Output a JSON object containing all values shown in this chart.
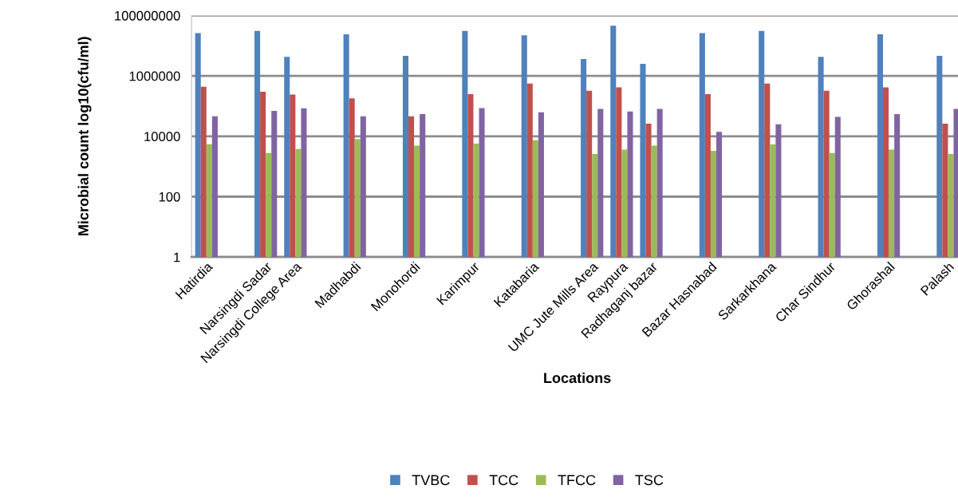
{
  "chart_data": {
    "type": "bar",
    "xlabel": "Locations",
    "ylabel": "Microbial count log10(cfu/ml)",
    "categories": [
      "Hatirdia",
      null,
      "Narsingdi Sadar",
      "Narsingdi College Area",
      null,
      "Madhabdi",
      null,
      "Monohordi",
      null,
      "Karimpur",
      null,
      "Katabaria",
      null,
      "UMC Jute Mills Area",
      "Raypura",
      "Radhaganj bazar",
      null,
      "Bazar Hasnabad",
      null,
      "Sarkarkhana",
      null,
      "Char Sindhur",
      null,
      "Ghorashal",
      null,
      "Palash"
    ],
    "series": [
      {
        "name": "TVBC",
        "color": "#4f81bd",
        "values": [
          26000000,
          null,
          31000000,
          4300000,
          null,
          24000000,
          null,
          4600000,
          null,
          31000000,
          null,
          22000000,
          null,
          3600000,
          46000000,
          2500000,
          null,
          26000000,
          null,
          31000000,
          null,
          4300000,
          null,
          24000000,
          null,
          4600000
        ]
      },
      {
        "name": "TCC",
        "color": "#c0504d",
        "values": [
          440000,
          null,
          300000,
          240000,
          null,
          180000,
          null,
          46000,
          null,
          250000,
          null,
          560000,
          null,
          320000,
          420000,
          26000,
          null,
          250000,
          null,
          560000,
          null,
          320000,
          null,
          420000,
          null,
          26000
        ]
      },
      {
        "name": "TFCC",
        "color": "#9bbb59",
        "values": [
          5500,
          null,
          2800,
          3800,
          null,
          8100,
          null,
          4900,
          null,
          5700,
          null,
          7400,
          null,
          2600,
          3600,
          4900,
          null,
          3300,
          null,
          5400,
          null,
          2800,
          null,
          3600,
          null,
          2600
        ]
      },
      {
        "name": "TSC",
        "color": "#8064a2",
        "values": [
          46000,
          null,
          69000,
          85000,
          null,
          46000,
          null,
          54000,
          null,
          86000,
          null,
          62000,
          null,
          81000,
          66000,
          81000,
          null,
          14000,
          null,
          25000,
          null,
          44000,
          null,
          54000,
          null,
          81000
        ]
      }
    ],
    "log": "y",
    "ylim": [
      1,
      100000000
    ],
    "yticks": [
      1,
      100,
      10000,
      1000000,
      100000000
    ],
    "grid": "y",
    "legend": "bottom"
  }
}
